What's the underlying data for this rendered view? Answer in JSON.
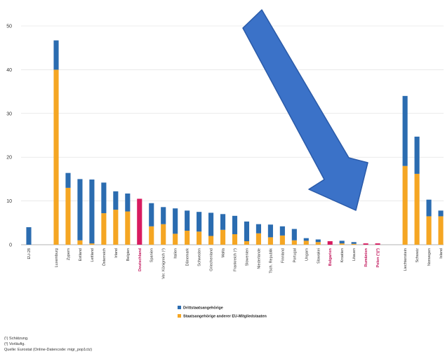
{
  "chart_data": {
    "type": "bar",
    "stacked": true,
    "ylim": [
      0,
      50
    ],
    "yticks": [
      0,
      10,
      20,
      30,
      40,
      50
    ],
    "grid": true,
    "categories": [
      "EU-28",
      "Luxemburg",
      "Zypern",
      "Estland",
      "Lettland",
      "Österreich",
      "Irland",
      "Belgien",
      "Deutschland",
      "Spanien",
      "Ver. Königreich (¹)",
      "Italien",
      "Dänemark",
      "Schweden",
      "Griechenland",
      "Malta",
      "Frankreich (¹)",
      "Slowenien",
      "Niederlande",
      "Tsch. Republik",
      "Finnland",
      "Portugal",
      "Ungarn",
      "Slowakei",
      "Bulgarien",
      "Kroatien",
      "Litauen",
      "Rumänien",
      "Polen (¹)(²)",
      "Liechtenstein",
      "Schweiz",
      "Norwegen",
      "Island"
    ],
    "highlighted": [
      "Deutschland",
      "Bulgarien",
      "Rumänien",
      "Polen (¹)(²)"
    ],
    "gap_before": [
      "Luxemburg",
      "Liechtenstein"
    ],
    "series": [
      {
        "name": "Staatsangehörige anderer EU-Mitgliedstaaten",
        "color": "#f5a623",
        "values": [
          0,
          40,
          13,
          1,
          0.3,
          7.2,
          8,
          7.6,
          0,
          4.2,
          4.7,
          2.5,
          3.2,
          3,
          2,
          3.4,
          2.4,
          0.8,
          2.6,
          1.7,
          2.1,
          1,
          0.9,
          0.6,
          0,
          0.3,
          0.2,
          0,
          0,
          18,
          16.2,
          6.5,
          6.5
        ]
      },
      {
        "name": "Drittstaatsangehörige",
        "color": "#2b6cb0",
        "values": [
          4,
          6.7,
          3.4,
          14,
          14.6,
          7,
          4.2,
          4.1,
          0,
          5.3,
          3.9,
          5.8,
          4.6,
          4.5,
          5.3,
          3.6,
          4.2,
          4.5,
          2.1,
          2.9,
          2.1,
          2.6,
          0.6,
          0.6,
          0,
          0.6,
          0.4,
          0,
          0,
          16,
          8.5,
          3.8,
          1.3
        ]
      },
      {
        "name": "",
        "color": "#d81b60",
        "values": [
          0,
          0,
          0,
          0,
          0,
          0,
          0,
          0,
          10.5,
          0,
          0,
          0,
          0,
          0,
          0,
          0,
          0,
          0,
          0,
          0,
          0,
          0,
          0,
          0,
          0.8,
          0,
          0,
          0.3,
          0.3,
          0,
          0,
          0,
          0
        ]
      }
    ],
    "legend": {
      "placement": "bottom",
      "entries": [
        "Drittstaatsangehörige",
        "Staatsangehörige anderer EU-Mitgliedstaaten"
      ]
    },
    "annotation": "blue-arrow-pointing-down-right"
  },
  "footnotes": [
    "(¹) Schätzung.",
    "(²) Vorläufig.",
    "Quelle: Eurostat (Online-Datencode: migr_pop1ctz)"
  ],
  "colors": {
    "arrow": "#3b72c8",
    "arrow_edge": "#2a5aa8",
    "grid": "#dedede"
  }
}
